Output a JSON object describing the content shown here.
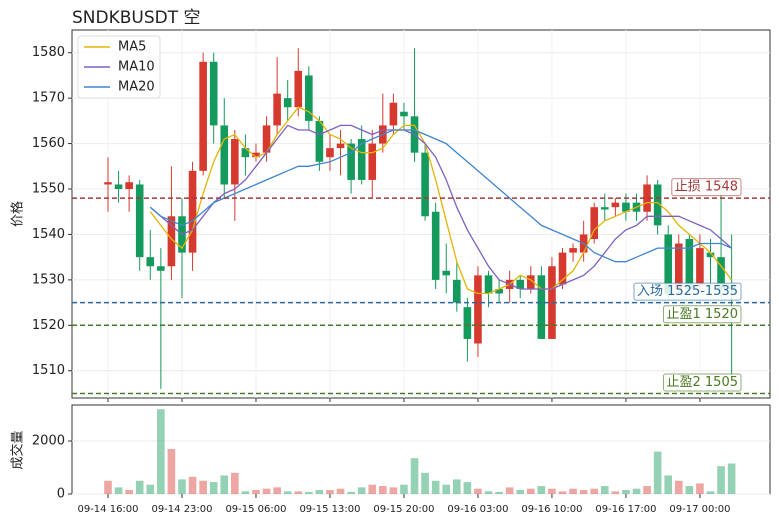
{
  "chart_data": [
    {
      "type": "candlestick",
      "title": "SNDKBUSDT 空",
      "ylabel": "价格",
      "categories": [
        "09-14 16:00",
        null,
        null,
        null,
        null,
        null,
        null,
        "09-14 23:00",
        null,
        null,
        null,
        null,
        null,
        null,
        "09-15 06:00",
        null,
        null,
        null,
        null,
        null,
        null,
        "09-15 13:00",
        null,
        null,
        null,
        null,
        null,
        null,
        "09-15 20:00",
        null,
        null,
        null,
        null,
        null,
        null,
        "09-16 03:00",
        null,
        null,
        null,
        null,
        null,
        null,
        "09-16 10:00",
        null,
        null,
        null,
        null,
        null,
        null,
        "09-16 17:00",
        null,
        null,
        null,
        null,
        null,
        null,
        "09-17 00:00",
        null,
        null,
        null
      ],
      "open": [
        1551,
        1551,
        1550,
        1551,
        1535,
        1533,
        1533,
        1544,
        1536,
        1554,
        1578,
        1564,
        1551,
        1559,
        1557,
        1558,
        1564,
        1570,
        1568,
        1575,
        1565,
        1557,
        1559,
        1560,
        1561,
        1552,
        1560,
        1564,
        1567,
        1566,
        1558,
        1545,
        1532,
        1530,
        1524,
        1516,
        1531,
        1528,
        1528,
        1530,
        1528,
        1531,
        1517,
        1529,
        1536,
        1536,
        1539,
        1546,
        1546,
        1547,
        1547,
        1545,
        1551,
        1540,
        1528,
        1539,
        1529,
        1536,
        1535,
        1529
      ],
      "high": [
        1557,
        1554,
        1553,
        1552,
        1541,
        1537,
        1555,
        1548,
        1556,
        1580,
        1580,
        1570,
        1563,
        1562,
        1560,
        1566,
        1579,
        1574,
        1581,
        1577,
        1566,
        1562,
        1563,
        1561,
        1564,
        1563,
        1571,
        1571,
        1569,
        1581,
        1560,
        1547,
        1538,
        1534,
        1526,
        1533,
        1532,
        1530,
        1532,
        1531,
        1533,
        1533,
        1535,
        1537,
        1538,
        1543,
        1547,
        1549,
        1548,
        1549,
        1549,
        1553,
        1552,
        1542,
        1540,
        1540,
        1540,
        1539,
        1552,
        1540
      ],
      "low": [
        1545,
        1547,
        1545,
        1532,
        1530,
        1506,
        1530,
        1526,
        1532,
        1553,
        1560,
        1548,
        1543,
        1553,
        1556,
        1556,
        1562,
        1565,
        1566,
        1563,
        1554,
        1554,
        1553,
        1549,
        1551,
        1548,
        1558,
        1562,
        1563,
        1556,
        1543,
        1528,
        1527,
        1523,
        1512,
        1513,
        1524,
        1525,
        1525,
        1526,
        1527,
        1517,
        1517,
        1528,
        1534,
        1534,
        1538,
        1543,
        1544,
        1543,
        1543,
        1543,
        1540,
        1526,
        1527,
        1527,
        1527,
        1528,
        1526,
        1508
      ],
      "close": [
        1551.5,
        1550,
        1551.5,
        1535,
        1533,
        1532,
        1544,
        1536,
        1554,
        1578,
        1564,
        1551,
        1561,
        1557,
        1558,
        1564,
        1571,
        1568,
        1576,
        1565,
        1556,
        1559,
        1560,
        1552,
        1552,
        1560,
        1564,
        1569,
        1566,
        1558,
        1544,
        1530,
        1531,
        1525,
        1517,
        1531,
        1527,
        1527,
        1530,
        1528,
        1531,
        1517,
        1533,
        1536,
        1537,
        1540,
        1546,
        1545.5,
        1547,
        1545,
        1545,
        1551,
        1542,
        1527,
        1538,
        1528,
        1537,
        1535,
        1528,
        1528
      ],
      "up_color": "#d63a2f",
      "down_color": "#149a5c",
      "series": [
        {
          "name": "MA5",
          "color": "#e3b505",
          "values": [
            null,
            null,
            null,
            null,
            1545,
            1542,
            1539,
            1537,
            1541,
            1549,
            1556,
            1561,
            1562,
            1559,
            1557,
            1558,
            1562,
            1565,
            1568,
            1567,
            1565,
            1562,
            1561,
            1559,
            1558,
            1558,
            1559,
            1562,
            1564,
            1564,
            1560,
            1552,
            1543,
            1534,
            1528,
            1527,
            1527,
            1528,
            1529,
            1531,
            1530,
            1528,
            1528,
            1530,
            1532,
            1536,
            1541,
            1543,
            1544,
            1545,
            1546,
            1547,
            1547,
            1545,
            1542,
            1540,
            1538,
            1536,
            1533,
            1530
          ]
        },
        {
          "name": "MA10",
          "color": "#7d62c2",
          "values": [
            null,
            null,
            null,
            null,
            1546,
            1544,
            1542,
            1540,
            1541,
            1544,
            1547,
            1549,
            1550,
            1552,
            1555,
            1558,
            1561,
            1564,
            1563,
            1563,
            1562,
            1563,
            1564,
            1564,
            1563,
            1562,
            1563,
            1563,
            1563,
            1562,
            1560,
            1557,
            1552,
            1546,
            1541,
            1537,
            1533,
            1530,
            1529,
            1528,
            1528,
            1528,
            1528,
            1529,
            1530,
            1531,
            1533,
            1536,
            1539,
            1541,
            1542,
            1544,
            1544,
            1544,
            1544,
            1543,
            1542,
            1541,
            1539,
            1537
          ]
        },
        {
          "name": "MA20",
          "color": "#3f86d2",
          "values": [
            null,
            null,
            null,
            null,
            1546,
            1544,
            1543,
            1542,
            1543,
            1545,
            1547,
            1548,
            1549,
            1550,
            1551,
            1552,
            1553,
            1554,
            1555,
            1555,
            1555.5,
            1556,
            1557,
            1558,
            1560,
            1561,
            1562,
            1563,
            1563,
            1563,
            1562,
            1561,
            1560,
            1558,
            1556,
            1554,
            1552,
            1550,
            1548,
            1546,
            1544,
            1542,
            1541,
            1540,
            1539,
            1538,
            1536,
            1535,
            1534,
            1534,
            1535,
            1536,
            1537,
            1537,
            1537,
            1537,
            1538,
            1538,
            1538,
            1537
          ]
        }
      ],
      "levels": [
        {
          "value": 1548,
          "label": "止损 1548",
          "color": "#a33a3a"
        },
        {
          "value": 1525,
          "label": "入场 1525-1535",
          "color": "#2b6a9e"
        },
        {
          "value": 1520,
          "label": "止盈1 1520",
          "color": "#4a7a22"
        },
        {
          "value": 1505,
          "label": "止盈2 1505",
          "color": "#4a7a22"
        }
      ],
      "ylim": [
        1504,
        1585
      ],
      "yticks": [
        1510,
        1520,
        1530,
        1540,
        1550,
        1560,
        1570,
        1580
      ],
      "grid": true,
      "legend": "upper left"
    },
    {
      "type": "bar",
      "ylabel": "成交量",
      "values": [
        500,
        250,
        150,
        500,
        350,
        3200,
        1700,
        550,
        650,
        500,
        450,
        700,
        800,
        100,
        150,
        200,
        250,
        100,
        100,
        80,
        150,
        150,
        200,
        80,
        250,
        350,
        300,
        250,
        350,
        1350,
        800,
        500,
        350,
        550,
        450,
        200,
        100,
        80,
        250,
        150,
        200,
        300,
        200,
        100,
        200,
        150,
        200,
        300,
        100,
        150,
        200,
        300,
        1600,
        700,
        500,
        300,
        400,
        100,
        1050,
        1150
      ],
      "ylim": [
        0,
        3360
      ],
      "yticks": [
        0,
        2000
      ],
      "grid": true
    }
  ]
}
